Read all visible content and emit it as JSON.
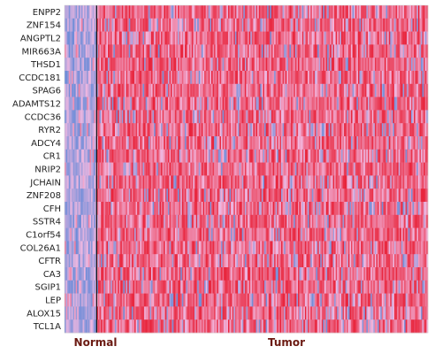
{
  "chart_data": {
    "type": "heatmap",
    "title": "",
    "xlabel": "",
    "ylabel": "",
    "genes": [
      "ENPP2",
      "ZNF154",
      "ANGPTL2",
      "MIR663A",
      "THSD1",
      "CCDC181",
      "SPAG6",
      "ADAMTS12",
      "CCDC36",
      "RYR2",
      "ADCY4",
      "CR1",
      "NRIP2",
      "JCHAIN",
      "ZNF208",
      "CFH",
      "SSTR4",
      "C1orf54",
      "COL26A1",
      "CFTR",
      "CA3",
      "SGIP1",
      "LEP",
      "ALOX15",
      "TCL1A"
    ],
    "groups": [
      {
        "name": "Normal",
        "fraction": 0.09
      },
      {
        "name": "Tumor",
        "fraction": 0.91
      }
    ],
    "group_separator": true,
    "color_low": "#3a7bd5",
    "color_mid": "#f2b8e0",
    "color_high": "#e8233a",
    "pattern": "Normal samples mostly low (blue/lavender); Tumor samples mostly high (red/pink) with scattered low values",
    "legend": "none",
    "grid": false
  }
}
